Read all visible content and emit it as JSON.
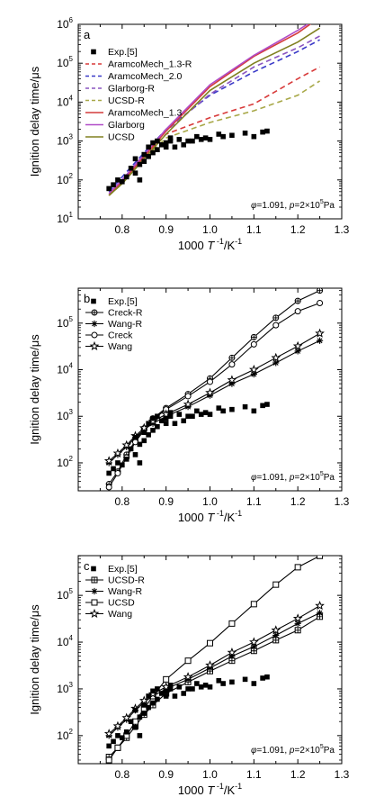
{
  "figure": {
    "ylabel": "Ignition delay time/μs",
    "xlabel_main": "1000 ",
    "xlabel_T": "T",
    "xlabel_exp": " -1",
    "xlabel_unit": "/K",
    "xlabel_unit_exp": "-1",
    "annot_phi": "φ",
    "annot_eq": "=1.091, ",
    "annot_p": "p",
    "annot_p_eq": "=2×10",
    "annot_p_exp": "5",
    "annot_pa": "Pa"
  },
  "chart_data": [
    {
      "panel_label": "a",
      "type": "line",
      "xlim": [
        0.7,
        1.3
      ],
      "ylim_log10": [
        1,
        6
      ],
      "x_ticks": [
        "0.8",
        "0.9",
        "1.0",
        "1.1",
        "1.2",
        "1.3"
      ],
      "y_ticks": [
        {
          "base": "10",
          "exp": "1"
        },
        {
          "base": "10",
          "exp": "2"
        },
        {
          "base": "10",
          "exp": "3"
        },
        {
          "base": "10",
          "exp": "4"
        },
        {
          "base": "10",
          "exp": "5"
        },
        {
          "base": "10",
          "exp": "6"
        }
      ],
      "legend_position": "top-left",
      "experimental": {
        "name": "Exp.[5]",
        "marker": "square",
        "x": [
          0.77,
          0.78,
          0.79,
          0.8,
          0.81,
          0.82,
          0.83,
          0.83,
          0.84,
          0.84,
          0.85,
          0.85,
          0.86,
          0.86,
          0.87,
          0.87,
          0.88,
          0.88,
          0.89,
          0.9,
          0.9,
          0.91,
          0.91,
          0.92,
          0.93,
          0.94,
          0.95,
          0.96,
          0.97,
          0.98,
          0.99,
          1.0,
          1.02,
          1.03,
          1.05,
          1.08,
          1.1,
          1.12,
          1.13
        ],
        "y": [
          60,
          75,
          100,
          90,
          120,
          200,
          150,
          350,
          250,
          100,
          450,
          300,
          700,
          400,
          900,
          500,
          600,
          1000,
          800,
          700,
          900,
          1000,
          1200,
          700,
          1100,
          800,
          1000,
          1000,
          1300,
          1100,
          1200,
          1100,
          1500,
          1300,
          1400,
          1600,
          1300,
          1700,
          1800
        ]
      },
      "series": [
        {
          "name": "AramcoMech_1.3-R",
          "color": "#d83a3a",
          "dash": "6,4",
          "x": [
            0.77,
            0.8,
            0.85,
            0.9,
            1.0,
            1.1,
            1.2,
            1.25
          ],
          "y": [
            40,
            100,
            400,
            1500,
            4000,
            9000,
            40000,
            80000
          ]
        },
        {
          "name": "AramcoMech_2.0",
          "color": "#3a3ac8",
          "dash": "6,4",
          "x": [
            0.77,
            0.8,
            0.85,
            0.9,
            1.0,
            1.1,
            1.2,
            1.25
          ],
          "y": [
            50,
            120,
            500,
            2000,
            15000,
            60000,
            200000,
            400000
          ]
        },
        {
          "name": "Glarborg-R",
          "color": "#8a55c0",
          "dash": "6,4",
          "x": [
            0.77,
            0.8,
            0.85,
            0.9,
            1.0,
            1.1,
            1.2,
            1.25
          ],
          "y": [
            45,
            100,
            450,
            1800,
            16000,
            80000,
            250000,
            500000
          ]
        },
        {
          "name": "UCSD-R",
          "color": "#a8a848",
          "dash": "6,4",
          "x": [
            0.77,
            0.8,
            0.85,
            0.9,
            1.0,
            1.1,
            1.2,
            1.25
          ],
          "y": [
            40,
            80,
            350,
            1200,
            3000,
            6000,
            15000,
            35000
          ]
        },
        {
          "name": "AramcoMech_1.3",
          "color": "#d43c3c",
          "dash": "",
          "x": [
            0.77,
            0.8,
            0.85,
            0.9,
            1.0,
            1.1,
            1.2,
            1.25
          ],
          "y": [
            40,
            90,
            400,
            1800,
            25000,
            150000,
            600000,
            1500000
          ]
        },
        {
          "name": "Glarborg",
          "color": "#b04cc8",
          "dash": "",
          "x": [
            0.77,
            0.8,
            0.85,
            0.9,
            1.0,
            1.1,
            1.2,
            1.25
          ],
          "y": [
            45,
            100,
            450,
            2000,
            28000,
            160000,
            700000,
            1600000
          ]
        },
        {
          "name": "UCSD",
          "color": "#808020",
          "dash": "",
          "x": [
            0.77,
            0.8,
            0.85,
            0.9,
            1.0,
            1.1,
            1.2,
            1.25
          ],
          "y": [
            40,
            80,
            350,
            1500,
            20000,
            100000,
            350000,
            800000
          ]
        }
      ]
    },
    {
      "panel_label": "b",
      "type": "line",
      "xlim": [
        0.7,
        1.3
      ],
      "ylim_log10": [
        1.4,
        5.75
      ],
      "x_ticks": [
        "0.8",
        "0.9",
        "1.0",
        "1.1",
        "1.2",
        "1.3"
      ],
      "y_ticks": [
        {
          "base": "10",
          "exp": "2"
        },
        {
          "base": "10",
          "exp": "3"
        },
        {
          "base": "10",
          "exp": "4"
        },
        {
          "base": "10",
          "exp": "5"
        }
      ],
      "legend_position": "top-left",
      "experimental": {
        "name": "Exp.[5]",
        "marker": "square",
        "x": [
          0.77,
          0.78,
          0.79,
          0.8,
          0.81,
          0.82,
          0.83,
          0.83,
          0.84,
          0.84,
          0.85,
          0.85,
          0.86,
          0.86,
          0.87,
          0.87,
          0.88,
          0.88,
          0.89,
          0.9,
          0.9,
          0.91,
          0.91,
          0.92,
          0.93,
          0.94,
          0.95,
          0.96,
          0.97,
          0.98,
          0.99,
          1.0,
          1.02,
          1.03,
          1.05,
          1.08,
          1.1,
          1.12,
          1.13
        ],
        "y": [
          60,
          75,
          100,
          90,
          120,
          200,
          150,
          350,
          250,
          100,
          450,
          300,
          700,
          400,
          900,
          500,
          600,
          1000,
          800,
          700,
          900,
          1000,
          1200,
          700,
          1100,
          800,
          1000,
          1000,
          1300,
          1100,
          1200,
          1100,
          1500,
          1300,
          1400,
          1600,
          1300,
          1700,
          1800
        ]
      },
      "series": [
        {
          "name": "Creck-R",
          "marker": "crossed-circle",
          "x": [
            0.77,
            0.79,
            0.81,
            0.83,
            0.85,
            0.87,
            0.9,
            0.95,
            1.0,
            1.05,
            1.1,
            1.15,
            1.2,
            1.25
          ],
          "y": [
            35,
            65,
            150,
            300,
            550,
            900,
            1500,
            3000,
            6500,
            18000,
            50000,
            130000,
            300000,
            500000
          ]
        },
        {
          "name": "Wang-R",
          "marker": "asterisk",
          "x": [
            0.77,
            0.79,
            0.81,
            0.83,
            0.85,
            0.87,
            0.9,
            0.95,
            1.0,
            1.05,
            1.1,
            1.15,
            1.2,
            1.25
          ],
          "y": [
            100,
            150,
            220,
            350,
            520,
            700,
            1000,
            1600,
            2800,
            5000,
            8000,
            14000,
            25000,
            42000
          ]
        },
        {
          "name": "Creck",
          "marker": "open-circle",
          "x": [
            0.77,
            0.79,
            0.81,
            0.83,
            0.85,
            0.87,
            0.9,
            0.95,
            1.0,
            1.05,
            1.1,
            1.15,
            1.2,
            1.25
          ],
          "y": [
            30,
            60,
            130,
            280,
            500,
            850,
            1400,
            2700,
            5500,
            13000,
            35000,
            90000,
            180000,
            270000
          ]
        },
        {
          "name": "Wang",
          "marker": "open-star",
          "x": [
            0.77,
            0.79,
            0.81,
            0.83,
            0.85,
            0.87,
            0.9,
            0.95,
            1.0,
            1.05,
            1.1,
            1.15,
            1.2,
            1.25
          ],
          "y": [
            110,
            160,
            240,
            380,
            560,
            780,
            1100,
            1800,
            3200,
            6000,
            10000,
            18000,
            32000,
            60000
          ]
        }
      ]
    },
    {
      "panel_label": "c",
      "type": "line",
      "xlim": [
        0.7,
        1.3
      ],
      "ylim_log10": [
        1.4,
        5.85
      ],
      "x_ticks": [
        "0.8",
        "0.9",
        "1.0",
        "1.1",
        "1.2",
        "1.3"
      ],
      "y_ticks": [
        {
          "base": "10",
          "exp": "2"
        },
        {
          "base": "10",
          "exp": "3"
        },
        {
          "base": "10",
          "exp": "4"
        },
        {
          "base": "10",
          "exp": "5"
        }
      ],
      "legend_position": "top-left",
      "experimental": {
        "name": "Exp.[5]",
        "marker": "square",
        "x": [
          0.77,
          0.78,
          0.79,
          0.8,
          0.81,
          0.82,
          0.83,
          0.83,
          0.84,
          0.84,
          0.85,
          0.85,
          0.86,
          0.86,
          0.87,
          0.87,
          0.88,
          0.88,
          0.89,
          0.9,
          0.9,
          0.91,
          0.91,
          0.92,
          0.93,
          0.94,
          0.95,
          0.96,
          0.97,
          0.98,
          0.99,
          1.0,
          1.02,
          1.03,
          1.05,
          1.08,
          1.1,
          1.12,
          1.13
        ],
        "y": [
          60,
          75,
          100,
          90,
          120,
          200,
          150,
          350,
          250,
          100,
          450,
          300,
          700,
          400,
          900,
          500,
          600,
          1000,
          800,
          700,
          900,
          1000,
          1200,
          700,
          1100,
          800,
          1000,
          1000,
          1300,
          1100,
          1200,
          1100,
          1500,
          1300,
          1400,
          1600,
          1300,
          1700,
          1800
        ]
      },
      "series": [
        {
          "name": "UCSD-R",
          "marker": "crossed-square",
          "x": [
            0.77,
            0.79,
            0.81,
            0.83,
            0.85,
            0.87,
            0.9,
            0.95,
            1.0,
            1.05,
            1.1,
            1.15,
            1.2,
            1.25
          ],
          "y": [
            35,
            55,
            90,
            160,
            280,
            450,
            800,
            1400,
            2400,
            4000,
            6500,
            11000,
            18000,
            35000
          ]
        },
        {
          "name": "Wang-R",
          "marker": "asterisk",
          "x": [
            0.77,
            0.79,
            0.81,
            0.83,
            0.85,
            0.87,
            0.9,
            0.95,
            1.0,
            1.05,
            1.1,
            1.15,
            1.2,
            1.25
          ],
          "y": [
            100,
            150,
            220,
            350,
            520,
            700,
            1000,
            1600,
            2800,
            5000,
            8000,
            14000,
            25000,
            42000
          ]
        },
        {
          "name": "UCSD",
          "marker": "open-square",
          "x": [
            0.77,
            0.79,
            0.81,
            0.83,
            0.85,
            0.87,
            0.9,
            0.95,
            1.0,
            1.05,
            1.1,
            1.15,
            1.2,
            1.25
          ],
          "y": [
            30,
            55,
            100,
            200,
            380,
            700,
            1600,
            4000,
            9500,
            25000,
            65000,
            170000,
            400000,
            700000
          ]
        },
        {
          "name": "Wang",
          "marker": "open-star",
          "x": [
            0.77,
            0.79,
            0.81,
            0.83,
            0.85,
            0.87,
            0.9,
            0.95,
            1.0,
            1.05,
            1.1,
            1.15,
            1.2,
            1.25
          ],
          "y": [
            110,
            160,
            240,
            380,
            560,
            780,
            1100,
            1800,
            3200,
            6000,
            10000,
            18000,
            32000,
            60000
          ]
        }
      ]
    }
  ]
}
